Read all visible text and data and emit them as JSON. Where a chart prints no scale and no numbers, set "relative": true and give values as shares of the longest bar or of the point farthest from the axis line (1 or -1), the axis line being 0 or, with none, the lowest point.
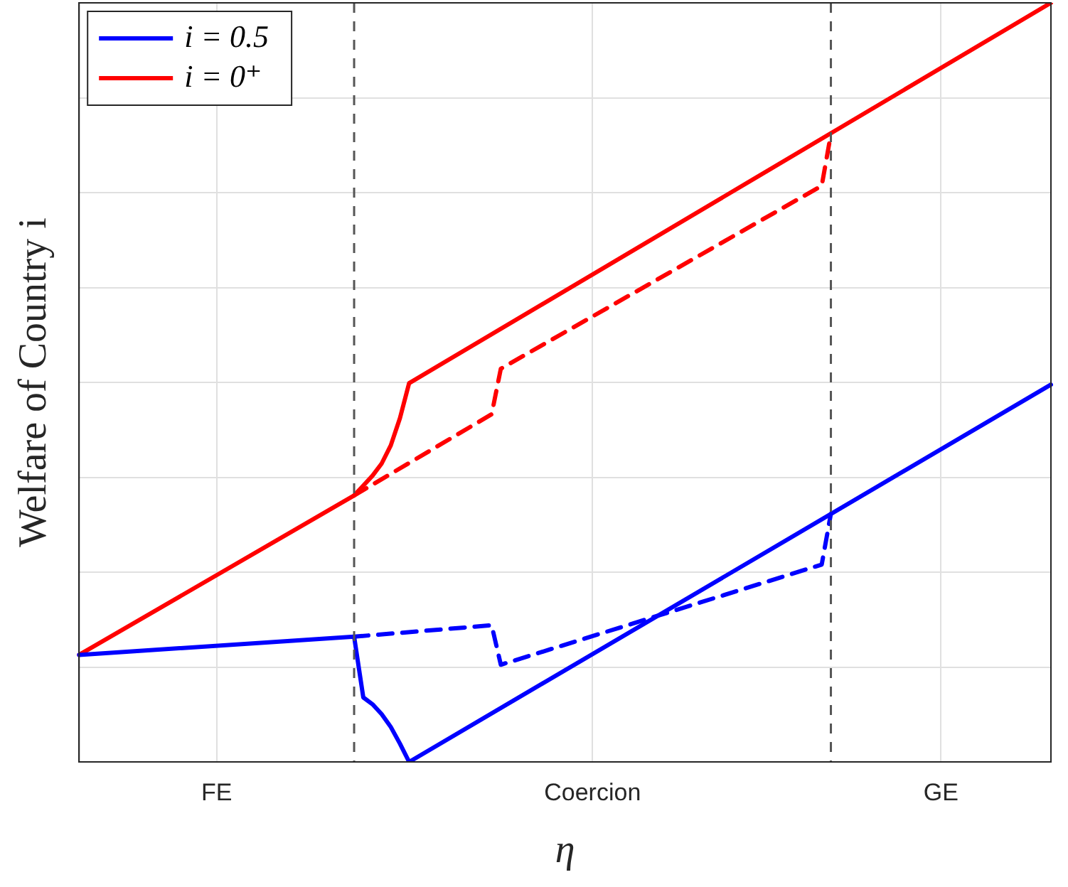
{
  "chart_data": {
    "type": "line",
    "relative": true,
    "xlabel": "η",
    "ylabel": "Welfare of Country i",
    "grid": true,
    "legend": "top left",
    "categories": [
      null,
      null,
      null,
      null,
      null,
      null,
      null,
      null,
      null,
      null,
      null,
      null,
      null,
      null,
      null,
      "FE",
      null,
      null,
      null,
      null,
      null,
      null,
      null,
      null,
      null,
      null,
      null,
      null,
      null,
      null,
      null,
      null,
      null,
      null,
      null,
      null,
      null,
      null,
      null,
      null,
      null,
      null,
      null,
      null,
      null,
      null,
      null,
      null,
      null,
      null,
      null,
      null,
      null,
      null,
      null,
      null,
      "Coercion",
      null,
      null,
      null,
      null,
      null,
      null,
      null,
      null,
      null,
      null,
      null,
      null,
      null,
      null,
      null,
      null,
      null,
      null,
      null,
      null,
      null,
      null,
      null,
      null,
      null,
      null,
      null,
      null,
      null,
      null,
      null,
      null,
      null,
      null,
      null,
      null,
      null,
      "GE",
      null,
      null,
      null,
      null,
      null,
      null,
      null,
      null,
      null,
      null,
      null,
      null
    ],
    "series": [
      {
        "name": "i = 0.5",
        "color": "#0000ff",
        "line_style": "solid",
        "values": [
          0.141,
          null,
          null,
          null,
          null,
          null,
          null,
          null,
          null,
          null,
          null,
          null,
          null,
          null,
          null,
          null,
          null,
          null,
          null,
          null,
          null,
          null,
          null,
          null,
          null,
          null,
          null,
          null,
          null,
          null,
          0.165,
          0.085,
          0.076,
          0.063,
          0.046,
          0.024,
          0,
          null,
          null,
          null,
          null,
          null,
          null,
          null,
          null,
          null,
          null,
          null,
          null,
          null,
          null,
          null,
          null,
          null,
          null,
          null,
          null,
          null,
          null,
          null,
          null,
          null,
          null,
          null,
          null,
          null,
          null,
          null,
          null,
          null,
          null,
          null,
          null,
          null,
          null,
          null,
          null,
          null,
          null,
          null,
          null,
          null,
          null,
          null,
          null,
          null,
          null,
          null,
          null,
          null,
          null,
          null,
          null,
          null,
          null,
          null,
          null,
          null,
          null,
          null,
          null,
          null,
          null,
          null,
          null,
          null,
          0.497
        ]
      },
      {
        "name": "i = 0⁺",
        "color": "#ff0000",
        "line_style": "solid",
        "values": [
          0.141,
          null,
          null,
          null,
          null,
          null,
          null,
          null,
          null,
          null,
          null,
          null,
          null,
          null,
          null,
          null,
          null,
          null,
          null,
          null,
          null,
          null,
          null,
          null,
          null,
          null,
          null,
          null,
          null,
          null,
          0.351,
          0.364,
          0.377,
          0.393,
          0.417,
          0.453,
          0.499,
          null,
          null,
          null,
          null,
          null,
          null,
          null,
          null,
          null,
          null,
          null,
          null,
          null,
          null,
          null,
          null,
          null,
          null,
          null,
          null,
          null,
          null,
          null,
          null,
          null,
          null,
          null,
          null,
          null,
          null,
          null,
          null,
          null,
          null,
          null,
          null,
          null,
          null,
          null,
          null,
          null,
          null,
          null,
          null,
          null,
          null,
          null,
          null,
          null,
          null,
          null,
          null,
          null,
          null,
          null,
          null,
          null,
          null,
          null,
          null,
          null,
          null,
          null,
          null,
          null,
          null,
          null,
          null,
          null,
          1
        ]
      },
      {
        "color": "#0000ff",
        "line_style": "dashed",
        "values": [
          null,
          null,
          null,
          null,
          null,
          null,
          null,
          null,
          null,
          null,
          null,
          null,
          null,
          null,
          null,
          null,
          null,
          null,
          null,
          null,
          null,
          null,
          null,
          null,
          null,
          null,
          null,
          null,
          null,
          null,
          0.165,
          null,
          null,
          null,
          null,
          null,
          null,
          null,
          null,
          null,
          null,
          null,
          null,
          null,
          null,
          0.18,
          0.128,
          null,
          null,
          null,
          null,
          null,
          null,
          null,
          null,
          null,
          null,
          null,
          null,
          null,
          null,
          null,
          null,
          null,
          null,
          null,
          null,
          null,
          null,
          null,
          null,
          null,
          null,
          null,
          null,
          null,
          null,
          null,
          null,
          null,
          null,
          0.26,
          0.327,
          null,
          null,
          null,
          null,
          null,
          null,
          null,
          null,
          null,
          null,
          null,
          null,
          null,
          null,
          null,
          null,
          null,
          null,
          null,
          null,
          null,
          null,
          null,
          null
        ]
      },
      {
        "color": "#ff0000",
        "line_style": "dashed",
        "values": [
          null,
          null,
          null,
          null,
          null,
          null,
          null,
          null,
          null,
          null,
          null,
          null,
          null,
          null,
          null,
          null,
          null,
          null,
          null,
          null,
          null,
          null,
          null,
          null,
          null,
          null,
          null,
          null,
          null,
          null,
          0.351,
          null,
          null,
          null,
          null,
          null,
          null,
          null,
          null,
          null,
          null,
          null,
          null,
          null,
          null,
          0.458,
          0.518,
          null,
          null,
          null,
          null,
          null,
          null,
          null,
          null,
          null,
          null,
          null,
          null,
          null,
          null,
          null,
          null,
          null,
          null,
          null,
          null,
          null,
          null,
          null,
          null,
          null,
          null,
          null,
          null,
          null,
          null,
          null,
          null,
          null,
          null,
          0.759,
          0.827,
          null,
          null,
          null,
          null,
          null,
          null,
          null,
          null,
          null,
          null,
          null,
          null,
          null,
          null,
          null,
          null,
          null,
          null,
          null,
          null,
          null,
          null,
          null,
          null
        ]
      }
    ]
  }
}
